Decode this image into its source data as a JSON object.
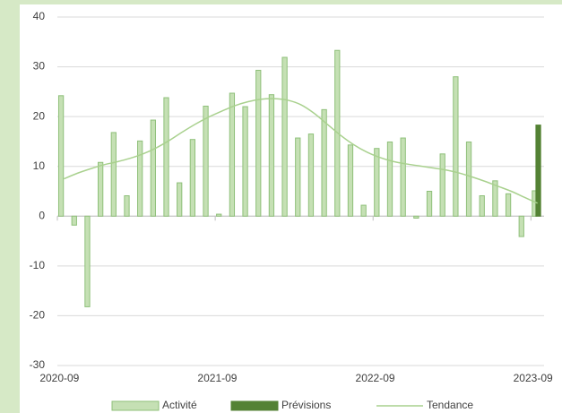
{
  "chart_data": {
    "type": "bar",
    "categories": [
      "2020-09",
      null,
      null,
      null,
      null,
      null,
      null,
      null,
      null,
      null,
      null,
      null,
      "2021-09",
      null,
      null,
      null,
      null,
      null,
      null,
      null,
      null,
      null,
      null,
      null,
      "2022-09",
      null,
      null,
      null,
      null,
      null,
      null,
      null,
      null,
      null,
      null,
      null,
      "2023-09"
    ],
    "series": [
      {
        "name": "Activité",
        "type": "bar",
        "color": "#c5e0b4",
        "edge": "#8fc07a",
        "values": [
          24.2,
          -1.8,
          -18.2,
          10.8,
          16.8,
          4.1,
          15.1,
          19.3,
          23.8,
          6.7,
          15.4,
          22.1,
          0.4,
          24.7,
          22.0,
          29.3,
          24.4,
          31.9,
          15.7,
          16.5,
          21.4,
          33.3,
          14.3,
          2.2,
          13.6,
          14.9,
          15.7,
          -0.4,
          5.0,
          12.5,
          28.0,
          14.9,
          4.1,
          7.1,
          4.5,
          -4.1,
          5.1
        ]
      },
      {
        "name": "Prévisions",
        "type": "bar",
        "color": "#548235",
        "edge": "#548235",
        "values": [
          null,
          null,
          null,
          null,
          null,
          null,
          null,
          null,
          null,
          null,
          null,
          null,
          null,
          null,
          null,
          null,
          null,
          null,
          null,
          null,
          null,
          null,
          null,
          null,
          null,
          null,
          null,
          null,
          null,
          null,
          null,
          null,
          null,
          null,
          null,
          null,
          18.3
        ]
      },
      {
        "name": "Tendance",
        "type": "line",
        "color": "#a9d18e",
        "values": [
          7.5,
          8.6,
          9.5,
          10.3,
          10.9,
          11.6,
          12.5,
          13.7,
          15.2,
          16.9,
          18.5,
          19.9,
          21.1,
          22.2,
          23.0,
          23.5,
          23.6,
          23.3,
          22.4,
          20.7,
          18.5,
          16.3,
          14.4,
          12.9,
          11.8,
          11.0,
          10.5,
          10.1,
          9.7,
          9.3,
          8.7,
          7.9,
          7.0,
          6.0,
          5.0,
          3.8,
          2.6
        ]
      }
    ],
    "ylim": [
      -30,
      40
    ],
    "yticks": [
      -30,
      -20,
      -10,
      0,
      10,
      20,
      30,
      40
    ],
    "grid": true,
    "legend": "bottom"
  }
}
